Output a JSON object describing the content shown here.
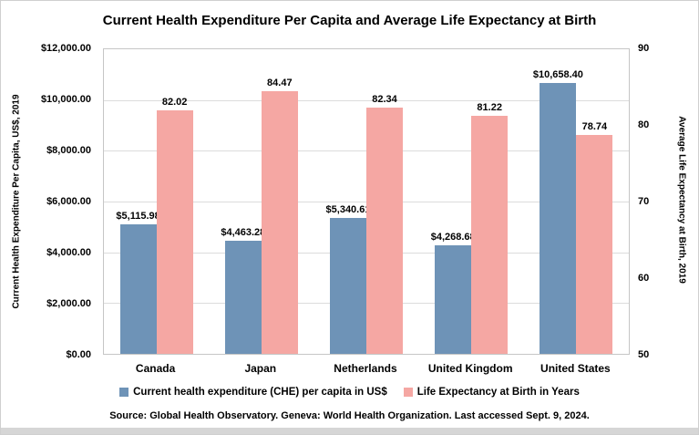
{
  "chart_data": {
    "type": "bar",
    "title": "Current Health Expenditure Per Capita and Average Life Expectancy at Birth",
    "categories": [
      "Canada",
      "Japan",
      "Netherlands",
      "United Kingdom",
      "United States"
    ],
    "series": [
      {
        "name": "Current health expenditure (CHE) per capita in US$",
        "axis": "left",
        "color": "#6E93B7",
        "values": [
          5115.98,
          4463.28,
          5340.61,
          4268.68,
          10658.4
        ],
        "labels": [
          "$5,115.98",
          "$4,463.28",
          "$5,340.61",
          "$4,268.68",
          "$10,658.40"
        ]
      },
      {
        "name": "Life Expectancy at Birth in Years",
        "axis": "right",
        "color": "#F5A7A3",
        "values": [
          82.02,
          84.47,
          82.34,
          81.22,
          78.74
        ],
        "labels": [
          "82.02",
          "84.47",
          "82.34",
          "81.22",
          "78.74"
        ]
      }
    ],
    "left_axis": {
      "label": "Current Health Expenditure Per Capita, US$, 2019",
      "min": 0,
      "max": 12000,
      "ticks": [
        "$12,000.00",
        "$10,000.00",
        "$8,000.00",
        "$6,000.00",
        "$4,000.00",
        "$2,000.00",
        "$0.00"
      ]
    },
    "right_axis": {
      "label": "Average Life Expectancy at Birth, 2019",
      "min": 50,
      "max": 90,
      "ticks": [
        "90",
        "80",
        "70",
        "60",
        "50"
      ]
    },
    "legend_position": "bottom",
    "grid": true,
    "source": "Source: Global Health Observatory. Geneva: World Health Organization. Last accessed Sept. 9, 2024."
  }
}
